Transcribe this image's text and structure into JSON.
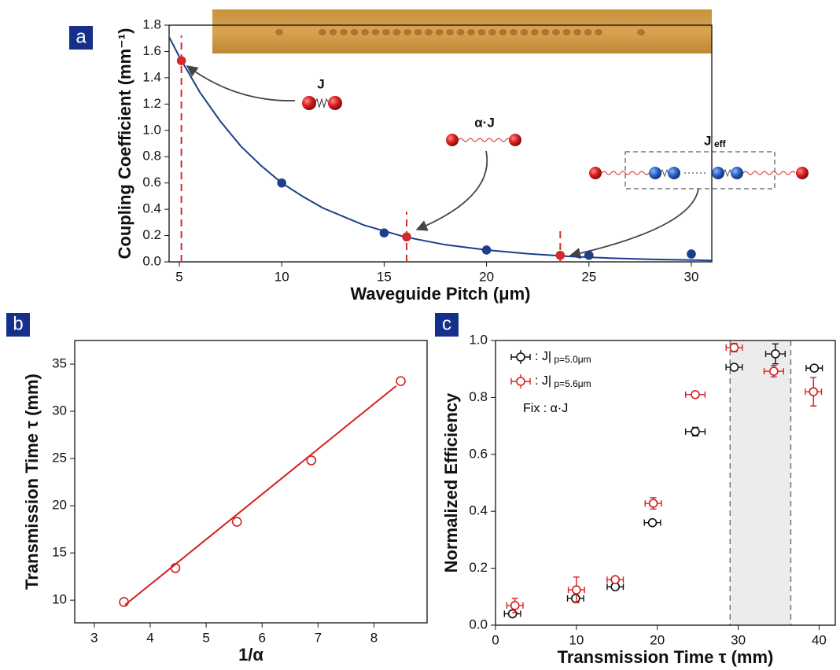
{
  "chart_data": [
    {
      "type": "scatter",
      "panel_label": "a",
      "xlabel": "Waveguide Pitch (μm)",
      "ylabel": "Coupling Coefficient (mm⁻¹)",
      "xlim": [
        4.5,
        31
      ],
      "ylim": [
        0,
        1.8
      ],
      "xticks": [
        5,
        10,
        15,
        20,
        25,
        30
      ],
      "yticks": [
        {
          "value": 0,
          "label": "0.0"
        },
        0.2,
        0.4,
        0.6,
        0.8,
        {
          "value": 1,
          "label": "1.0"
        },
        1.2,
        1.4,
        1.6,
        1.8
      ],
      "annotations": [
        "J",
        "α·J",
        "J",
        "eff"
      ],
      "series": [
        {
          "type": "line",
          "color": "#1b3f8b",
          "x": [
            4.5,
            5,
            6,
            7,
            8,
            9,
            10,
            11,
            12,
            14,
            16,
            18,
            20,
            22,
            24,
            26,
            28,
            31
          ],
          "values": [
            1.71,
            1.56,
            1.29,
            1.07,
            0.88,
            0.73,
            0.6,
            0.5,
            0.41,
            0.28,
            0.19,
            0.13,
            0.09,
            0.062,
            0.042,
            0.029,
            0.02,
            0.011
          ]
        },
        {
          "type": "scatter",
          "marker": "filled",
          "color": "#1b3f8b",
          "x": [
            10,
            15,
            20,
            25,
            30
          ],
          "values": [
            0.6,
            0.22,
            0.09,
            0.05,
            0.06
          ]
        },
        {
          "type": "scatter",
          "marker": "filled",
          "dropline": true,
          "color": "#d62a2a",
          "x": [
            5.1,
            16.1,
            23.6
          ],
          "values": [
            1.53,
            0.19,
            0.05
          ]
        }
      ]
    },
    {
      "type": "scatter",
      "panel_label": "b",
      "xlabel": "1/α",
      "ylabel": "Transmission Time τ (mm)",
      "xlim": [
        2.65,
        8.95
      ],
      "ylim": [
        7.6,
        37.5
      ],
      "xticks": [
        3,
        4,
        5,
        6,
        7,
        8
      ],
      "yticks": [
        10,
        15,
        20,
        25,
        30,
        35
      ],
      "series": [
        {
          "type": "scatter",
          "marker": "open",
          "color": "#d42020",
          "x": [
            3.53,
            4.45,
            5.55,
            6.88,
            8.48
          ],
          "values": [
            9.8,
            13.4,
            18.3,
            24.8,
            33.2
          ]
        },
        {
          "type": "line",
          "color": "#d42020",
          "x": [
            3.55,
            8.4
          ],
          "values": [
            9.5,
            32.7
          ]
        }
      ]
    },
    {
      "type": "errorbar",
      "panel_label": "c",
      "xlabel": "Transmission Time τ (mm)",
      "ylabel": "Normalized Efficiency",
      "xlim": [
        0,
        42
      ],
      "ylim": [
        0,
        1
      ],
      "xticks": [
        0,
        10,
        20,
        30,
        40
      ],
      "yticks": [
        {
          "value": 0,
          "label": "0.0"
        },
        0.2,
        0.4,
        0.6,
        0.8,
        {
          "value": 1,
          "label": "1.0"
        }
      ],
      "shade": [
        29,
        36.5
      ],
      "annotations": [
        "Fix :  α·J"
      ],
      "series": [
        {
          "type": "errorbar",
          "name": ": J| p=5.0μm",
          "color": "#111111",
          "x": [
            2.1,
            9.9,
            14.8,
            19.4,
            24.7,
            29.5,
            34.6,
            39.4
          ],
          "values": [
            0.04,
            0.094,
            0.135,
            0.36,
            0.68,
            0.906,
            0.953,
            0.903
          ],
          "yerr": [
            0.01,
            0.01,
            0.01,
            0.01,
            0.015,
            0.008,
            0.035,
            0.008
          ],
          "xerr": [
            1,
            1,
            1,
            1,
            1.2,
            1,
            1.2,
            1
          ]
        },
        {
          "type": "errorbar",
          "name": ": J| p=5.6μm",
          "color": "#d42020",
          "x": [
            2.4,
            10.0,
            14.8,
            19.5,
            24.7,
            29.5,
            34.4,
            39.3
          ],
          "values": [
            0.069,
            0.124,
            0.16,
            0.428,
            0.81,
            0.975,
            0.892,
            0.82
          ],
          "yerr": [
            0.025,
            0.045,
            0.01,
            0.02,
            0.01,
            0.015,
            0.02,
            0.05
          ],
          "xerr": [
            1,
            1,
            1,
            1,
            1.2,
            1,
            1.2,
            1
          ]
        }
      ]
    }
  ]
}
